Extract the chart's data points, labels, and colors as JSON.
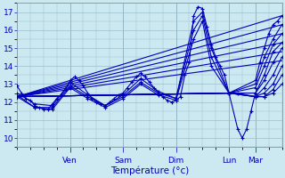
{
  "xlabel": "Température (°c)",
  "bg_color": "#cce8f0",
  "plot_bg_color": "#cce8f0",
  "line_color": "#0000bb",
  "marker": "+",
  "marker_size": 3,
  "marker_lw": 0.8,
  "line_width": 0.8,
  "ylim": [
    9.5,
    17.5
  ],
  "yticks": [
    10,
    11,
    12,
    13,
    14,
    15,
    16,
    17
  ],
  "xlim": [
    0,
    120
  ],
  "day_ticks": [
    24,
    48,
    72,
    96,
    108
  ],
  "day_labels": [
    "Ven",
    "Sam",
    "Dim",
    "Lun",
    "Mar"
  ],
  "grid_color": "#9bbfcc",
  "series": [
    [
      0,
      12.9,
      2,
      12.5,
      4,
      12.2,
      6,
      12.1,
      8,
      11.8,
      10,
      11.7,
      12,
      11.6,
      14,
      11.6,
      16,
      11.9,
      18,
      12.2,
      20,
      12.4,
      22,
      12.7,
      24,
      13.2,
      26,
      13.4,
      28,
      13.2,
      30,
      12.9,
      32,
      12.5,
      34,
      12.2,
      36,
      12.0,
      38,
      11.9,
      40,
      11.8,
      42,
      12.0,
      44,
      12.2,
      46,
      12.4,
      48,
      12.5,
      50,
      12.8,
      52,
      13.1,
      54,
      13.4,
      56,
      13.6,
      58,
      13.4,
      60,
      13.1,
      62,
      12.8,
      64,
      12.5,
      66,
      12.3,
      68,
      12.1,
      70,
      12.0,
      72,
      12.1,
      74,
      12.3,
      76,
      13.5,
      78,
      14.2,
      80,
      16.8,
      82,
      17.3,
      84,
      17.2,
      86,
      16.2,
      88,
      15.2,
      90,
      14.5,
      92,
      14.0,
      94,
      13.5,
      96,
      12.5,
      108,
      13.2,
      110,
      14.2,
      112,
      15.0,
      114,
      15.8,
      116,
      16.3,
      118,
      16.5,
      120,
      16.8
    ],
    [
      0,
      12.5,
      8,
      11.9,
      16,
      11.8,
      24,
      13.1,
      32,
      12.4,
      40,
      11.8,
      48,
      12.4,
      56,
      13.3,
      64,
      12.6,
      72,
      12.2,
      80,
      16.5,
      84,
      17.0,
      88,
      15.0,
      96,
      12.5,
      108,
      13.0,
      112,
      14.5,
      116,
      15.5,
      120,
      16.3
    ],
    [
      0,
      12.4,
      8,
      11.7,
      16,
      11.7,
      24,
      12.9,
      32,
      12.3,
      40,
      11.8,
      48,
      12.3,
      56,
      13.1,
      64,
      12.5,
      72,
      12.2,
      80,
      16.0,
      84,
      16.8,
      88,
      14.5,
      96,
      12.5,
      108,
      12.8,
      112,
      14.0,
      116,
      15.2,
      120,
      15.8
    ],
    [
      0,
      12.3,
      8,
      11.7,
      16,
      11.6,
      24,
      12.8,
      32,
      12.2,
      40,
      11.7,
      48,
      12.2,
      56,
      13.0,
      64,
      12.4,
      72,
      12.1,
      80,
      15.5,
      84,
      16.5,
      88,
      14.0,
      96,
      12.5,
      108,
      12.5,
      112,
      13.5,
      116,
      14.8,
      120,
      15.3
    ],
    [
      0,
      12.3,
      96,
      12.5,
      100,
      10.5,
      102,
      10.0,
      104,
      10.5,
      106,
      11.5,
      108,
      12.5,
      112,
      13.2,
      116,
      14.2,
      120,
      15.0
    ],
    [
      0,
      12.3,
      96,
      12.5,
      100,
      12.5,
      108,
      12.3,
      112,
      12.8,
      116,
      13.5,
      120,
      14.5
    ],
    [
      0,
      12.3,
      96,
      12.5,
      108,
      12.3,
      112,
      12.5,
      116,
      13.0,
      120,
      14.0
    ],
    [
      0,
      12.3,
      96,
      12.5,
      108,
      12.3,
      112,
      12.3,
      116,
      12.7,
      120,
      13.5
    ],
    [
      0,
      12.3,
      96,
      12.5,
      108,
      12.3,
      112,
      12.3,
      116,
      12.5,
      120,
      13.0
    ]
  ],
  "fan_lines": [
    [
      0,
      12.3,
      120,
      16.8
    ],
    [
      0,
      12.3,
      120,
      16.3
    ],
    [
      0,
      12.3,
      120,
      15.8
    ],
    [
      0,
      12.3,
      120,
      15.3
    ],
    [
      0,
      12.3,
      120,
      14.8
    ],
    [
      0,
      12.3,
      120,
      14.3
    ],
    [
      0,
      12.3,
      96,
      12.5
    ]
  ]
}
